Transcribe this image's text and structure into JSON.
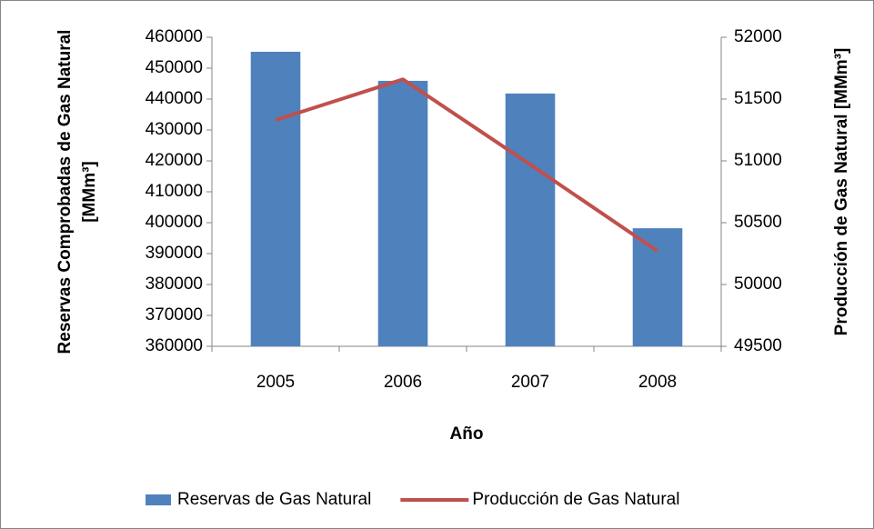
{
  "chart_data": {
    "type": "bar-line",
    "categories": [
      "2005",
      "2006",
      "2007",
      "2008"
    ],
    "x_label": "Año",
    "y_label": [
      "Reservas Comprobadas de Gas Natural",
      "[MMm³]"
    ],
    "y2_label": "Producción de Gas Natural [MMm³]",
    "ylim": [
      360000,
      460000
    ],
    "yticks": [
      360000,
      370000,
      380000,
      390000,
      400000,
      410000,
      420000,
      430000,
      440000,
      450000,
      460000
    ],
    "y2lim": [
      49500,
      52000
    ],
    "y2ticks": [
      49500,
      50000,
      50500,
      51000,
      51500,
      52000
    ],
    "series": [
      {
        "name": "Reservas de Gas Natural",
        "type": "bar",
        "color": "#4f81bd",
        "values": [
          455300,
          445900,
          441800,
          398200
        ]
      },
      {
        "name": "Producción de Gas Natural",
        "type": "line",
        "axis": "y2",
        "color": "#c0504d",
        "values": [
          51330,
          51660,
          50970,
          50270
        ]
      }
    ],
    "legend": "bottom"
  }
}
